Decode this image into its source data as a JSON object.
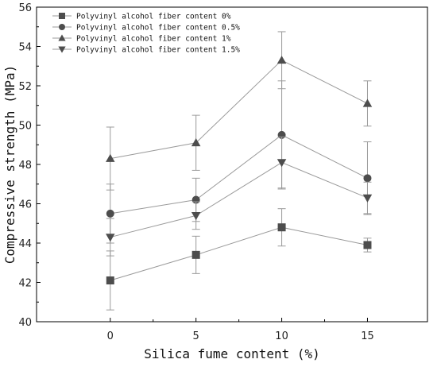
{
  "chart_data": {
    "type": "line",
    "title": "",
    "xlabel": "Silica fume content (%)",
    "ylabel": "Compressive strength (MPa)",
    "x": [
      0,
      5,
      10,
      15
    ],
    "xticks": [
      "0",
      "5",
      "10",
      "15"
    ],
    "xlim": [
      -4.3,
      18.5
    ],
    "ylim": [
      40,
      56
    ],
    "yticks": [
      "40",
      "42",
      "44",
      "46",
      "48",
      "50",
      "52",
      "54",
      "56"
    ],
    "grid": false,
    "legend_position": "top-left",
    "line_color": "#9a9a9a",
    "marker_color": "#4d4d4d",
    "series": [
      {
        "name": "Polyvinyl alcohol fiber content 0%",
        "marker": "square",
        "values": [
          42.1,
          43.4,
          44.8,
          43.9
        ],
        "errors": [
          1.5,
          0.95,
          0.95,
          0.35
        ]
      },
      {
        "name": "Polyvinyl alcohol fiber content 0.5%",
        "marker": "circle",
        "values": [
          45.5,
          46.2,
          49.5,
          47.3
        ],
        "errors": [
          1.5,
          1.1,
          2.75,
          1.85
        ]
      },
      {
        "name": "Polyvinyl alcohol fiber content 1%",
        "marker": "triangle-up",
        "values": [
          48.3,
          49.1,
          53.3,
          51.1
        ],
        "errors": [
          1.6,
          1.4,
          1.45,
          1.15
        ]
      },
      {
        "name": "Polyvinyl alcohol fiber content 1.5%",
        "marker": "triangle-down",
        "values": [
          44.3,
          45.4,
          48.1,
          46.3
        ],
        "errors": [
          0.95,
          0.7,
          1.3,
          0.8
        ]
      }
    ]
  }
}
